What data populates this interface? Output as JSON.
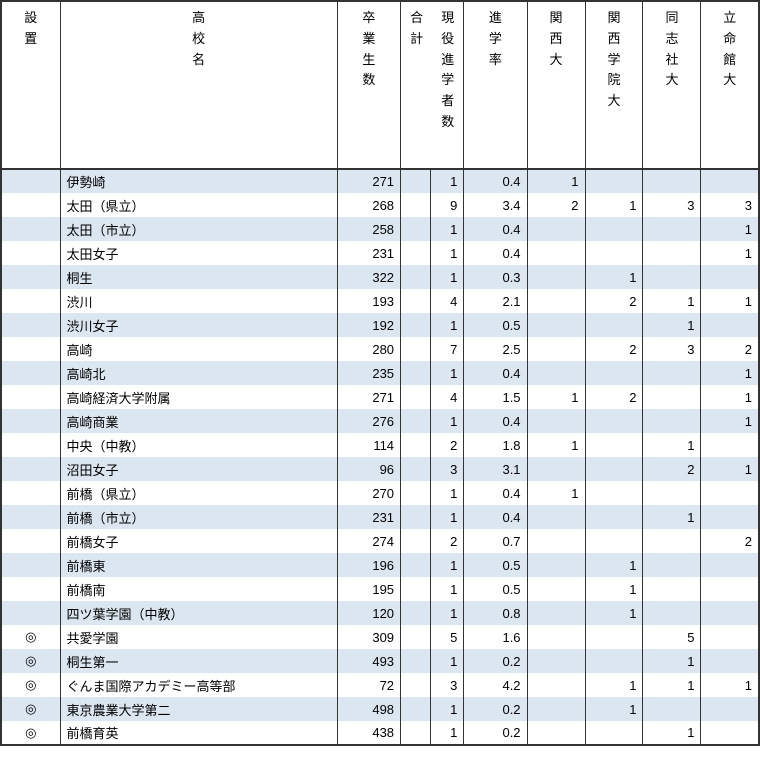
{
  "colors": {
    "row_odd_bg": "#dce6f0",
    "row_even_bg": "#ffffff",
    "border": "#333333",
    "text": "#000000"
  },
  "columns": {
    "mark": "設\n置",
    "name": "高\n校\n名",
    "grad": "卒\n業\n生\n数",
    "total": "合\n計",
    "current": "現\n役\n進\n学\n者\n数",
    "rate": "進\n学\n率",
    "u1": "関\n西\n大",
    "u2": "関\n西\n学\n院\n大",
    "u3": "同\n志\n社\n大",
    "u4": "立\n命\n館\n大"
  },
  "rows": [
    {
      "mark": "",
      "name": "伊勢崎",
      "grad": "271",
      "total": "",
      "current": "1",
      "rate": "0.4",
      "u1": "1",
      "u2": "",
      "u3": "",
      "u4": ""
    },
    {
      "mark": "",
      "name": "太田（県立）",
      "grad": "268",
      "total": "",
      "current": "9",
      "rate": "3.4",
      "u1": "2",
      "u2": "1",
      "u3": "3",
      "u4": "3"
    },
    {
      "mark": "",
      "name": "太田（市立）",
      "grad": "258",
      "total": "",
      "current": "1",
      "rate": "0.4",
      "u1": "",
      "u2": "",
      "u3": "",
      "u4": "1"
    },
    {
      "mark": "",
      "name": "太田女子",
      "grad": "231",
      "total": "",
      "current": "1",
      "rate": "0.4",
      "u1": "",
      "u2": "",
      "u3": "",
      "u4": "1"
    },
    {
      "mark": "",
      "name": "桐生",
      "grad": "322",
      "total": "",
      "current": "1",
      "rate": "0.3",
      "u1": "",
      "u2": "1",
      "u3": "",
      "u4": ""
    },
    {
      "mark": "",
      "name": "渋川",
      "grad": "193",
      "total": "",
      "current": "4",
      "rate": "2.1",
      "u1": "",
      "u2": "2",
      "u3": "1",
      "u4": "1"
    },
    {
      "mark": "",
      "name": "渋川女子",
      "grad": "192",
      "total": "",
      "current": "1",
      "rate": "0.5",
      "u1": "",
      "u2": "",
      "u3": "1",
      "u4": ""
    },
    {
      "mark": "",
      "name": "高崎",
      "grad": "280",
      "total": "",
      "current": "7",
      "rate": "2.5",
      "u1": "",
      "u2": "2",
      "u3": "3",
      "u4": "2"
    },
    {
      "mark": "",
      "name": "高崎北",
      "grad": "235",
      "total": "",
      "current": "1",
      "rate": "0.4",
      "u1": "",
      "u2": "",
      "u3": "",
      "u4": "1"
    },
    {
      "mark": "",
      "name": "高崎経済大学附属",
      "grad": "271",
      "total": "",
      "current": "4",
      "rate": "1.5",
      "u1": "1",
      "u2": "2",
      "u3": "",
      "u4": "1"
    },
    {
      "mark": "",
      "name": "高崎商業",
      "grad": "276",
      "total": "",
      "current": "1",
      "rate": "0.4",
      "u1": "",
      "u2": "",
      "u3": "",
      "u4": "1"
    },
    {
      "mark": "",
      "name": "中央（中教）",
      "grad": "114",
      "total": "",
      "current": "2",
      "rate": "1.8",
      "u1": "1",
      "u2": "",
      "u3": "1",
      "u4": ""
    },
    {
      "mark": "",
      "name": "沼田女子",
      "grad": "96",
      "total": "",
      "current": "3",
      "rate": "3.1",
      "u1": "",
      "u2": "",
      "u3": "2",
      "u4": "1"
    },
    {
      "mark": "",
      "name": "前橋（県立）",
      "grad": "270",
      "total": "",
      "current": "1",
      "rate": "0.4",
      "u1": "1",
      "u2": "",
      "u3": "",
      "u4": ""
    },
    {
      "mark": "",
      "name": "前橋（市立）",
      "grad": "231",
      "total": "",
      "current": "1",
      "rate": "0.4",
      "u1": "",
      "u2": "",
      "u3": "1",
      "u4": ""
    },
    {
      "mark": "",
      "name": "前橋女子",
      "grad": "274",
      "total": "",
      "current": "2",
      "rate": "0.7",
      "u1": "",
      "u2": "",
      "u3": "",
      "u4": "2"
    },
    {
      "mark": "",
      "name": "前橋東",
      "grad": "196",
      "total": "",
      "current": "1",
      "rate": "0.5",
      "u1": "",
      "u2": "1",
      "u3": "",
      "u4": ""
    },
    {
      "mark": "",
      "name": "前橋南",
      "grad": "195",
      "total": "",
      "current": "1",
      "rate": "0.5",
      "u1": "",
      "u2": "1",
      "u3": "",
      "u4": ""
    },
    {
      "mark": "",
      "name": "四ツ葉学園（中教）",
      "grad": "120",
      "total": "",
      "current": "1",
      "rate": "0.8",
      "u1": "",
      "u2": "1",
      "u3": "",
      "u4": ""
    },
    {
      "mark": "◎",
      "name": "共愛学園",
      "grad": "309",
      "total": "",
      "current": "5",
      "rate": "1.6",
      "u1": "",
      "u2": "",
      "u3": "5",
      "u4": ""
    },
    {
      "mark": "◎",
      "name": "桐生第一",
      "grad": "493",
      "total": "",
      "current": "1",
      "rate": "0.2",
      "u1": "",
      "u2": "",
      "u3": "1",
      "u4": ""
    },
    {
      "mark": "◎",
      "name": "ぐんま国際アカデミー高等部",
      "grad": "72",
      "total": "",
      "current": "3",
      "rate": "4.2",
      "u1": "",
      "u2": "1",
      "u3": "1",
      "u4": "1"
    },
    {
      "mark": "◎",
      "name": "東京農業大学第二",
      "grad": "498",
      "total": "",
      "current": "1",
      "rate": "0.2",
      "u1": "",
      "u2": "1",
      "u3": "",
      "u4": ""
    },
    {
      "mark": "◎",
      "name": "前橋育英",
      "grad": "438",
      "total": "",
      "current": "1",
      "rate": "0.2",
      "u1": "",
      "u2": "",
      "u3": "1",
      "u4": ""
    }
  ]
}
